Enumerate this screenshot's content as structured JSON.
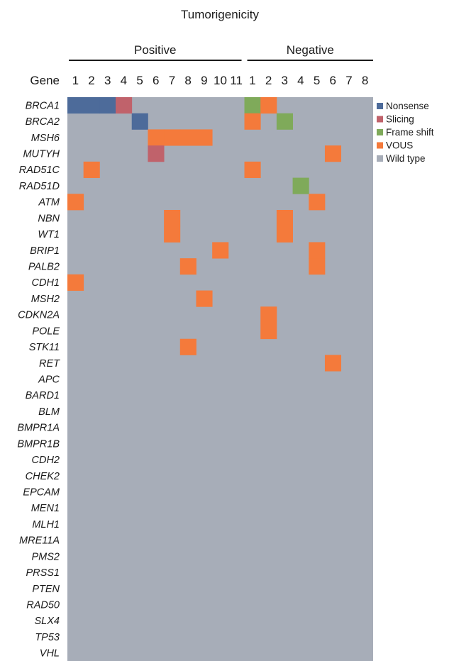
{
  "chart_data": {
    "type": "heatmap",
    "title": "Tumorigenicity",
    "row_header": "Gene",
    "groups": [
      {
        "name": "Positive",
        "columns": [
          "1",
          "2",
          "3",
          "4",
          "5",
          "6",
          "7",
          "8",
          "9",
          "10",
          "11"
        ]
      },
      {
        "name": "Negative",
        "columns": [
          "1",
          "2",
          "3",
          "4",
          "5",
          "6",
          "7",
          "8"
        ]
      }
    ],
    "genes": [
      "BRCA1",
      "BRCA2",
      "MSH6",
      "MUTYH",
      "RAD51C",
      "RAD51D",
      "ATM",
      "NBN",
      "WT1",
      "BRIP1",
      "PALB2",
      "CDH1",
      "MSH2",
      "CDKN2A",
      "POLE",
      "STK11",
      "RET",
      "APC",
      "BARD1",
      "BLM",
      "BMPR1A",
      "BMPR1B",
      "CDH2",
      "CHEK2",
      "EPCAM",
      "MEN1",
      "MLH1",
      "MRE11A",
      "PMS2",
      "PRSS1",
      "PTEN",
      "RAD50",
      "SLX4",
      "TP53",
      "VHL"
    ],
    "categories": [
      {
        "key": "N",
        "name": "Nonsense",
        "color": "#4d6b9a"
      },
      {
        "key": "S",
        "name": "Slicing",
        "color": "#c0626b"
      },
      {
        "key": "F",
        "name": "Frame shift",
        "color": "#7faa5a"
      },
      {
        "key": "V",
        "name": "VOUS",
        "color": "#f47a3b"
      },
      {
        "key": "W",
        "name": "Wild type",
        "color": "#a7adb8"
      }
    ],
    "default_category": "W",
    "mutations": [
      {
        "gene": "BRCA1",
        "group": "Positive",
        "column": "1",
        "category": "N"
      },
      {
        "gene": "BRCA1",
        "group": "Positive",
        "column": "2",
        "category": "N"
      },
      {
        "gene": "BRCA1",
        "group": "Positive",
        "column": "3",
        "category": "N"
      },
      {
        "gene": "BRCA1",
        "group": "Positive",
        "column": "4",
        "category": "S"
      },
      {
        "gene": "BRCA1",
        "group": "Negative",
        "column": "1",
        "category": "F"
      },
      {
        "gene": "BRCA1",
        "group": "Negative",
        "column": "2",
        "category": "V"
      },
      {
        "gene": "BRCA2",
        "group": "Positive",
        "column": "5",
        "category": "N"
      },
      {
        "gene": "BRCA2",
        "group": "Negative",
        "column": "1",
        "category": "V"
      },
      {
        "gene": "BRCA2",
        "group": "Negative",
        "column": "3",
        "category": "F"
      },
      {
        "gene": "MSH6",
        "group": "Positive",
        "column": "6",
        "category": "V"
      },
      {
        "gene": "MSH6",
        "group": "Positive",
        "column": "7",
        "category": "V"
      },
      {
        "gene": "MSH6",
        "group": "Positive",
        "column": "8",
        "category": "V"
      },
      {
        "gene": "MSH6",
        "group": "Positive",
        "column": "9",
        "category": "V"
      },
      {
        "gene": "MUTYH",
        "group": "Positive",
        "column": "6",
        "category": "S"
      },
      {
        "gene": "MUTYH",
        "group": "Negative",
        "column": "6",
        "category": "V"
      },
      {
        "gene": "RAD51C",
        "group": "Positive",
        "column": "2",
        "category": "V"
      },
      {
        "gene": "RAD51C",
        "group": "Negative",
        "column": "1",
        "category": "V"
      },
      {
        "gene": "RAD51D",
        "group": "Negative",
        "column": "4",
        "category": "F"
      },
      {
        "gene": "ATM",
        "group": "Positive",
        "column": "1",
        "category": "V"
      },
      {
        "gene": "ATM",
        "group": "Negative",
        "column": "5",
        "category": "V"
      },
      {
        "gene": "NBN",
        "group": "Positive",
        "column": "7",
        "category": "V"
      },
      {
        "gene": "NBN",
        "group": "Negative",
        "column": "3",
        "category": "V"
      },
      {
        "gene": "WT1",
        "group": "Positive",
        "column": "7",
        "category": "V"
      },
      {
        "gene": "WT1",
        "group": "Negative",
        "column": "3",
        "category": "V"
      },
      {
        "gene": "BRIP1",
        "group": "Positive",
        "column": "10",
        "category": "V"
      },
      {
        "gene": "BRIP1",
        "group": "Negative",
        "column": "5",
        "category": "V"
      },
      {
        "gene": "PALB2",
        "group": "Positive",
        "column": "8",
        "category": "V"
      },
      {
        "gene": "PALB2",
        "group": "Negative",
        "column": "5",
        "category": "V"
      },
      {
        "gene": "CDH1",
        "group": "Positive",
        "column": "1",
        "category": "V"
      },
      {
        "gene": "MSH2",
        "group": "Positive",
        "column": "9",
        "category": "V"
      },
      {
        "gene": "CDKN2A",
        "group": "Negative",
        "column": "2",
        "category": "V"
      },
      {
        "gene": "POLE",
        "group": "Negative",
        "column": "2",
        "category": "V"
      },
      {
        "gene": "STK11",
        "group": "Positive",
        "column": "8",
        "category": "V"
      },
      {
        "gene": "RET",
        "group": "Negative",
        "column": "6",
        "category": "V"
      }
    ],
    "grid": false,
    "legend_position": "right"
  }
}
